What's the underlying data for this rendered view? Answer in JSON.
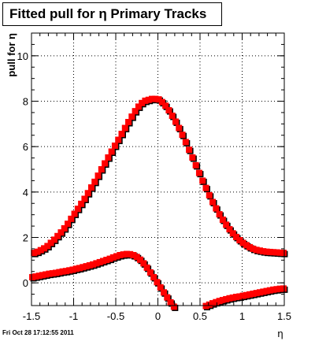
{
  "chart_data": {
    "type": "scatter",
    "title": "Fitted pull for η  Primary Tracks",
    "xlabel": "η",
    "ylabel": "pull for η",
    "xlim": [
      -1.5,
      1.5
    ],
    "ylim": [
      -1.0,
      11.0
    ],
    "xticks": [
      -1.5,
      -1,
      -0.5,
      0,
      0.5,
      1,
      1.5
    ],
    "xtick_labels": [
      "-1.5",
      "-1",
      "-0.5",
      "0",
      "0.5",
      "1",
      "1.5"
    ],
    "yticks": [
      0,
      2,
      4,
      6,
      8,
      10
    ],
    "ytick_labels": [
      "0",
      "2",
      "4",
      "6",
      "8",
      "10"
    ],
    "grid": true,
    "marker_color": "#ff0000",
    "series": [
      {
        "name": "",
        "x": [
          -1.47,
          -1.43,
          -1.39,
          -1.35,
          -1.31,
          -1.27,
          -1.23,
          -1.19,
          -1.15,
          -1.11,
          -1.07,
          -1.03,
          -0.99,
          -0.95,
          -0.91,
          -0.87,
          -0.83,
          -0.79,
          -0.75,
          -0.71,
          -0.67,
          -0.63,
          -0.59,
          -0.55,
          -0.51,
          -0.47,
          -0.43,
          -0.39,
          -0.35,
          -0.31,
          -0.27,
          -0.23,
          -0.19,
          -0.15,
          -0.11,
          -0.07,
          -0.03,
          0.01,
          0.05,
          0.09,
          0.13,
          0.17,
          0.21,
          0.25,
          0.29,
          0.33,
          0.37,
          0.41,
          0.45,
          0.49,
          0.53,
          0.57,
          0.61,
          0.65,
          0.69,
          0.73,
          0.77,
          0.81,
          0.85,
          0.89,
          0.93,
          0.97,
          1.01,
          1.05,
          1.09,
          1.13,
          1.17,
          1.21,
          1.25,
          1.29,
          1.33,
          1.37,
          1.41,
          1.45,
          1.49
        ],
        "y": [
          1.32,
          1.37,
          1.44,
          1.52,
          1.62,
          1.76,
          1.9,
          2.06,
          2.22,
          2.4,
          2.6,
          2.82,
          3.04,
          3.26,
          3.48,
          3.7,
          3.95,
          4.2,
          4.45,
          4.72,
          5.0,
          5.26,
          5.52,
          5.78,
          6.04,
          6.3,
          6.56,
          6.82,
          7.08,
          7.32,
          7.56,
          7.76,
          7.92,
          8.02,
          8.06,
          8.1,
          8.1,
          8.08,
          7.96,
          7.8,
          7.6,
          7.36,
          7.1,
          6.82,
          6.52,
          6.2,
          5.86,
          5.52,
          5.18,
          4.84,
          4.5,
          4.18,
          3.86,
          3.56,
          3.28,
          3.02,
          2.78,
          2.56,
          2.36,
          2.18,
          2.02,
          1.88,
          1.76,
          1.66,
          1.57,
          1.5,
          1.45,
          1.42,
          1.39,
          1.37,
          1.36,
          1.35,
          1.34,
          1.33,
          1.32
        ]
      },
      {
        "name": "",
        "x": [
          -1.49,
          -1.45,
          -1.41,
          -1.37,
          -1.33,
          -1.29,
          -1.25,
          -1.21,
          -1.17,
          -1.13,
          -1.09,
          -1.05,
          -1.01,
          -0.97,
          -0.93,
          -0.89,
          -0.85,
          -0.81,
          -0.77,
          -0.73,
          -0.69,
          -0.65,
          -0.61,
          -0.57,
          -0.53,
          -0.49,
          -0.45,
          -0.41,
          -0.37,
          -0.33,
          -0.29,
          -0.25,
          -0.21,
          -0.17,
          -0.13,
          -0.09,
          -0.05,
          -0.01,
          0.03,
          0.07,
          0.11,
          0.15,
          0.19
        ],
        "y": [
          0.25,
          0.28,
          0.31,
          0.34,
          0.37,
          0.4,
          0.42,
          0.44,
          0.47,
          0.5,
          0.52,
          0.55,
          0.58,
          0.62,
          0.65,
          0.69,
          0.73,
          0.77,
          0.81,
          0.86,
          0.91,
          0.96,
          1.01,
          1.06,
          1.12,
          1.17,
          1.22,
          1.25,
          1.27,
          1.26,
          1.22,
          1.14,
          1.02,
          0.86,
          0.67,
          0.46,
          0.25,
          0.03,
          -0.2,
          -0.42,
          -0.64,
          -0.86,
          -1.05
        ]
      },
      {
        "name": "",
        "x": [
          0.57,
          0.61,
          0.65,
          0.69,
          0.73,
          0.77,
          0.81,
          0.85,
          0.89,
          0.93,
          0.97,
          1.01,
          1.05,
          1.09,
          1.13,
          1.17,
          1.21,
          1.25,
          1.29,
          1.33,
          1.37,
          1.41,
          1.45,
          1.49
        ],
        "y": [
          -1.02,
          -0.96,
          -0.9,
          -0.85,
          -0.8,
          -0.76,
          -0.72,
          -0.68,
          -0.65,
          -0.62,
          -0.6,
          -0.57,
          -0.54,
          -0.51,
          -0.48,
          -0.45,
          -0.42,
          -0.39,
          -0.36,
          -0.33,
          -0.3,
          -0.28,
          -0.26,
          -0.25
        ]
      }
    ]
  },
  "timestamp": "Fri Oct 28 17:12:55 2011"
}
